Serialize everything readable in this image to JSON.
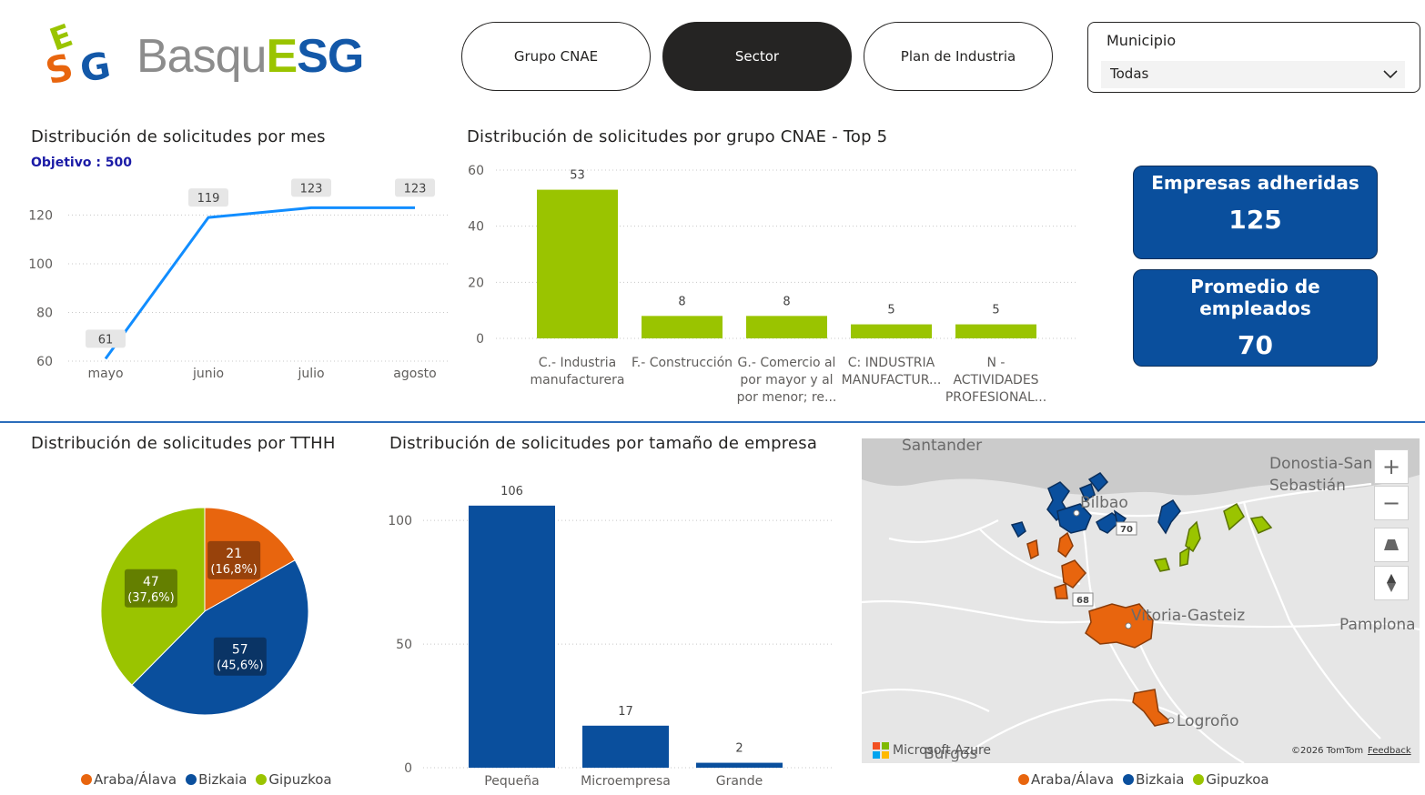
{
  "logo": {
    "text_part1": "Basqu",
    "text_e": "E",
    "text_sg": "SG"
  },
  "nav": [
    {
      "label": "Grupo CNAE",
      "active": false
    },
    {
      "label": "Sector",
      "active": true
    },
    {
      "label": "Plan de Industria",
      "active": false
    }
  ],
  "slicer": {
    "title": "Municipio",
    "value": "Todas"
  },
  "monthly": {
    "title": "Distribución de solicitudes por mes",
    "subtitle": "Objetivo : 500"
  },
  "cnae": {
    "title": "Distribución de solicitudes por grupo CNAE - Top 5"
  },
  "kpis": [
    {
      "label": "Empresas adheridas",
      "value": "125"
    },
    {
      "label": "Promedio de empleados",
      "value": "70"
    }
  ],
  "tthh": {
    "title": "Distribución de solicitudes por TTHH"
  },
  "size": {
    "title": "Distribución de solicitudes por tamaño de empresa"
  },
  "legend": [
    {
      "label": "Araba/Álava",
      "color": "#e8650e"
    },
    {
      "label": "Bizkaia",
      "color": "#0a4f9d"
    },
    {
      "label": "Gipuzkoa",
      "color": "#9ac400"
    }
  ],
  "map": {
    "cities": [
      "Santander",
      "Donostia-San",
      "Sebastián",
      "Bilbao",
      "Vitoria-Gasteiz",
      "Pamplona",
      "Logroño",
      "Burgos"
    ],
    "road_badges": [
      "70",
      "68"
    ],
    "attribution_left": "Microsoft Azure",
    "attribution_right": "©2026 TomTom",
    "feedback": "Feedback",
    "zoom_in": "+",
    "zoom_out": "−"
  },
  "chart_data": [
    {
      "type": "line",
      "title": "Distribución de solicitudes por mes",
      "categories": [
        "mayo",
        "junio",
        "julio",
        "agosto"
      ],
      "values": [
        61,
        119,
        123,
        123
      ],
      "yticks": [
        60,
        80,
        100,
        120
      ],
      "ylim": [
        60,
        128
      ],
      "color": "#118dff",
      "grid": true
    },
    {
      "type": "bar",
      "title": "Distribución de solicitudes por grupo CNAE - Top 5",
      "categories": [
        [
          "C.- Industria",
          "manufacturera"
        ],
        [
          "F.- Construcción"
        ],
        [
          "G.- Comercio al",
          "por mayor y al",
          "por menor; re..."
        ],
        [
          "C: INDUSTRIA",
          "MANUFACTUR..."
        ],
        [
          "N -",
          "ACTIVIDADES",
          "PROFESIONAL..."
        ]
      ],
      "values": [
        53,
        8,
        8,
        5,
        5
      ],
      "yticks": [
        0,
        20,
        40,
        60
      ],
      "ylim": [
        0,
        60
      ],
      "color": "#9ac400",
      "grid": true
    },
    {
      "type": "pie",
      "title": "Distribución de solicitudes por TTHH",
      "slices": [
        {
          "name": "Araba/Álava",
          "value": 21,
          "pct": "16,8%",
          "color": "#e8650e",
          "labelbg": "#8a3c0a"
        },
        {
          "name": "Bizkaia",
          "value": 57,
          "pct": "45,6%",
          "color": "#0a4f9d",
          "labelbg": "#0b2f5c"
        },
        {
          "name": "Gipuzkoa",
          "value": 47,
          "pct": "37,6%",
          "color": "#9ac400",
          "labelbg": "#5a7300"
        }
      ],
      "legend_position": "bottom"
    },
    {
      "type": "bar",
      "title": "Distribución de solicitudes por tamaño de empresa",
      "categories": [
        "Pequeña",
        "Microempresa",
        "Grande"
      ],
      "values": [
        106,
        17,
        2
      ],
      "yticks": [
        0,
        50,
        100
      ],
      "ylim": [
        0,
        110
      ],
      "color": "#0a4f9d",
      "grid": true
    }
  ]
}
